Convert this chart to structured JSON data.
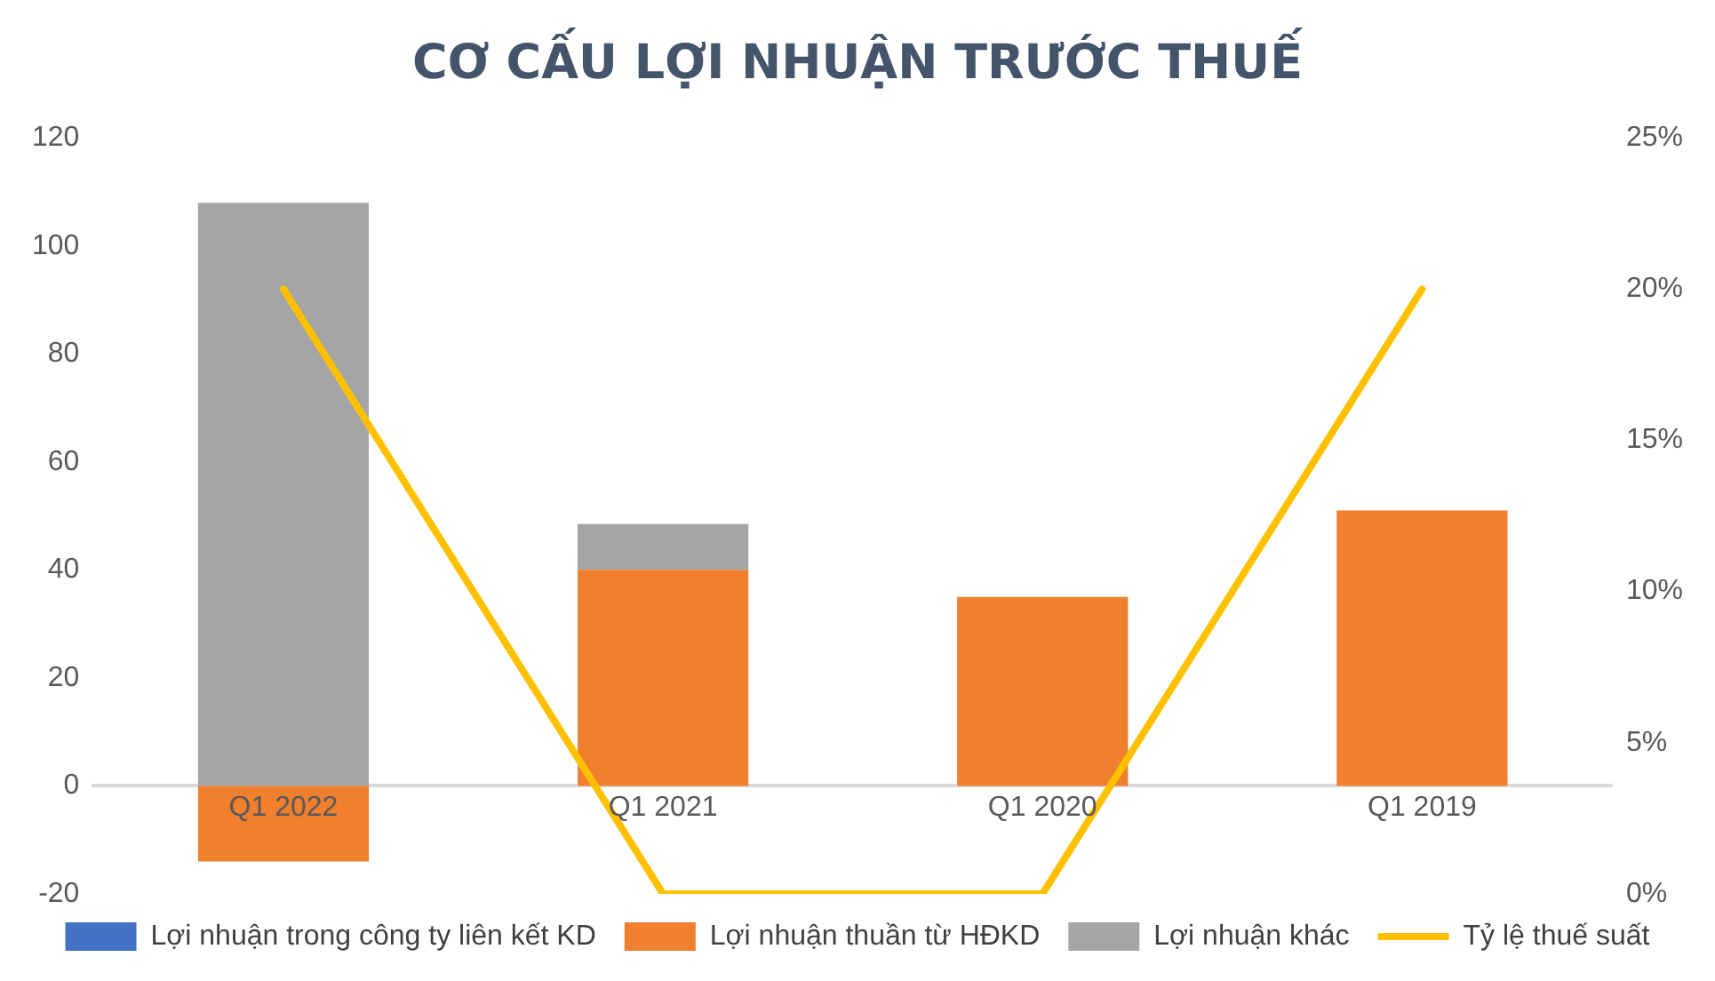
{
  "chart_data": {
    "type": "bar",
    "title": "CƠ CẤU LỢI NHUẬN TRƯỚC THUẾ",
    "categories": [
      "Q1 2022",
      "Q1 2021",
      "Q1 2020",
      "Q1 2019"
    ],
    "stacked": true,
    "series": [
      {
        "name": "Lợi nhuận trong công ty liên kết KD",
        "color": "#4472c4",
        "values": [
          null,
          null,
          null,
          null
        ]
      },
      {
        "name": "Lợi nhuận thuần từ HĐKD",
        "color": "#f07f2e",
        "values": [
          -14,
          40,
          35,
          51
        ]
      },
      {
        "name": "Lợi nhuận khác",
        "color": "#a5a5a5",
        "values": [
          108,
          8.5,
          null,
          null
        ]
      },
      {
        "name": "Tỷ lệ thuế suất",
        "type": "line",
        "axis": "y2",
        "color": "#ffc000",
        "values": [
          20,
          0,
          0,
          20
        ]
      }
    ],
    "ylim": [
      -20,
      120
    ],
    "yticks": [
      -20,
      0,
      20,
      40,
      60,
      80,
      100,
      120
    ],
    "y2lim": [
      0,
      25
    ],
    "y2ticks": [
      {
        "value": 0,
        "label": "0%"
      },
      {
        "value": 5,
        "label": "5%"
      },
      {
        "value": 10,
        "label": "10%"
      },
      {
        "value": 15,
        "label": "15%"
      },
      {
        "value": 20,
        "label": "20%"
      },
      {
        "value": 25,
        "label": "25%"
      }
    ],
    "grid": false,
    "legend": "bottom",
    "marker": "none",
    "line_style": "solid"
  }
}
